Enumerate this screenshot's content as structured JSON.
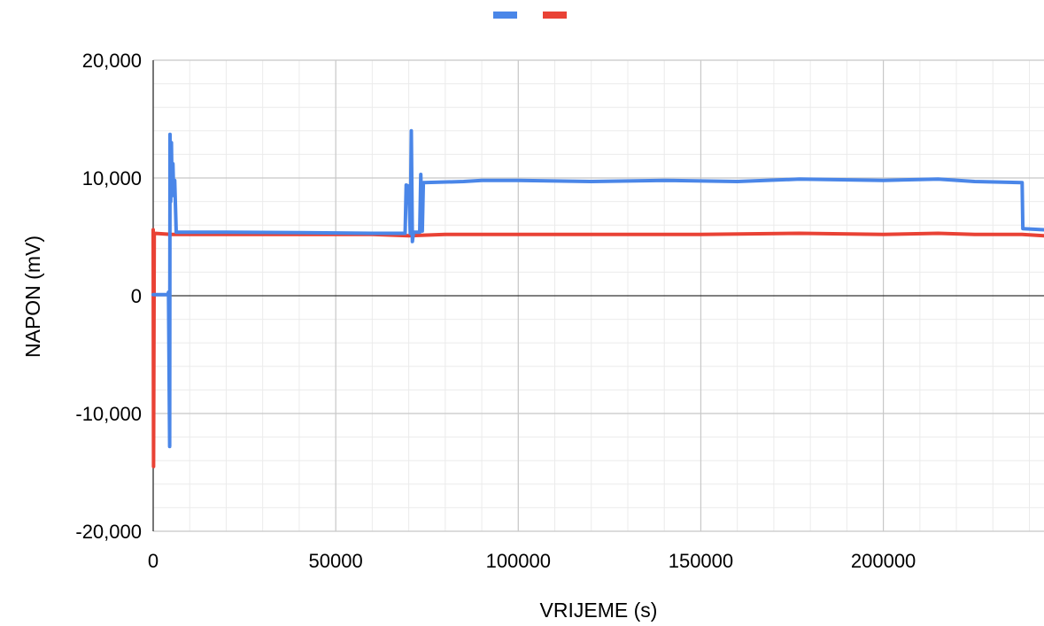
{
  "chart_data": {
    "type": "line",
    "title": "",
    "xlabel": "VRIJEME (s)",
    "ylabel": "NAPON (mV)",
    "xlim": [
      0,
      244000
    ],
    "ylim": [
      -20000,
      20000
    ],
    "x_ticks": [
      0,
      50000,
      100000,
      150000,
      200000
    ],
    "x_tick_labels": [
      "0",
      "50000",
      "100000",
      "150000",
      "200000"
    ],
    "y_ticks": [
      -20000,
      -10000,
      0,
      10000,
      20000
    ],
    "y_tick_labels": [
      "-20,000",
      "-10,000",
      "0",
      "10,000",
      "20,000"
    ],
    "grid": true,
    "legend_position": "top",
    "series": [
      {
        "color": "#4a86e8",
        "points": [
          [
            0,
            100
          ],
          [
            4000,
            100
          ],
          [
            4200,
            300
          ],
          [
            4400,
            -8000
          ],
          [
            4500,
            -12800
          ],
          [
            4600,
            13700
          ],
          [
            4800,
            8000
          ],
          [
            5000,
            13000
          ],
          [
            5200,
            8500
          ],
          [
            5400,
            11200
          ],
          [
            5600,
            8800
          ],
          [
            5900,
            9800
          ],
          [
            6300,
            5400
          ],
          [
            20000,
            5400
          ],
          [
            40000,
            5350
          ],
          [
            60000,
            5300
          ],
          [
            69000,
            5300
          ],
          [
            69300,
            9400
          ],
          [
            70000,
            9300
          ],
          [
            70400,
            5300
          ],
          [
            70700,
            14000
          ],
          [
            71000,
            4600
          ],
          [
            71300,
            5400
          ],
          [
            73000,
            5400
          ],
          [
            73300,
            10300
          ],
          [
            73700,
            5500
          ],
          [
            74000,
            9600
          ],
          [
            85000,
            9700
          ],
          [
            90000,
            9800
          ],
          [
            100000,
            9800
          ],
          [
            120000,
            9700
          ],
          [
            140000,
            9800
          ],
          [
            160000,
            9700
          ],
          [
            177000,
            9900
          ],
          [
            200000,
            9800
          ],
          [
            215000,
            9900
          ],
          [
            225000,
            9700
          ],
          [
            238000,
            9600
          ],
          [
            238200,
            5700
          ],
          [
            244000,
            5600
          ]
        ]
      },
      {
        "color": "#e94235",
        "points": [
          [
            0,
            5600
          ],
          [
            100,
            -14500
          ],
          [
            300,
            5300
          ],
          [
            5000,
            5200
          ],
          [
            20000,
            5200
          ],
          [
            40000,
            5200
          ],
          [
            60000,
            5200
          ],
          [
            70000,
            5100
          ],
          [
            80000,
            5200
          ],
          [
            100000,
            5200
          ],
          [
            150000,
            5200
          ],
          [
            177000,
            5300
          ],
          [
            200000,
            5200
          ],
          [
            215000,
            5300
          ],
          [
            225000,
            5200
          ],
          [
            238000,
            5200
          ],
          [
            244000,
            5100
          ]
        ]
      }
    ]
  }
}
